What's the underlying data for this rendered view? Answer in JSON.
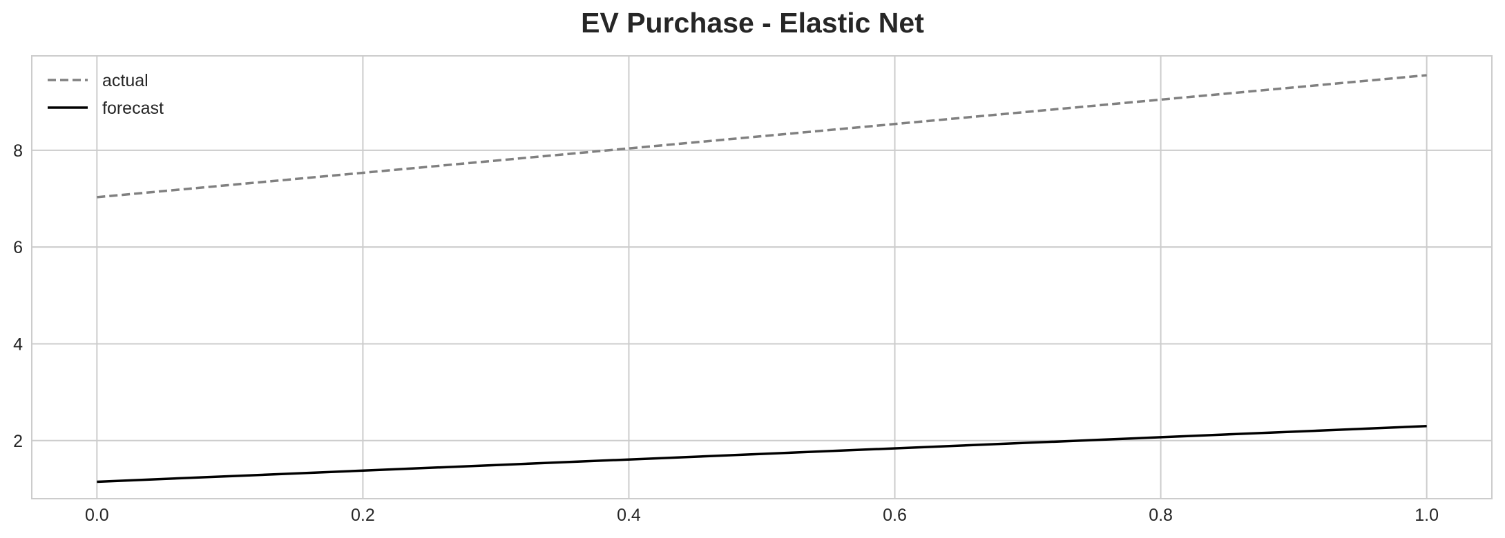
{
  "chart_data": {
    "type": "line",
    "title": "EV Purchase - Elastic Net",
    "xlabel": "",
    "ylabel": "",
    "xlim": [
      -0.049,
      1.049
    ],
    "ylim": [
      0.8,
      9.95
    ],
    "x_ticks": [
      0.0,
      0.2,
      0.4,
      0.6,
      0.8,
      1.0
    ],
    "x_tick_labels": [
      "0.0",
      "0.2",
      "0.4",
      "0.6",
      "0.8",
      "1.0"
    ],
    "y_ticks": [
      2,
      4,
      6,
      8
    ],
    "y_tick_labels": [
      "2",
      "4",
      "6",
      "8"
    ],
    "grid": true,
    "legend_position": "top-left",
    "series": [
      {
        "name": "actual",
        "x": [
          0.0,
          1.0
        ],
        "values": [
          7.03,
          9.55
        ],
        "color": "#808080",
        "style": "dashed"
      },
      {
        "name": "forecast",
        "x": [
          0.0,
          1.0
        ],
        "values": [
          1.15,
          2.3
        ],
        "color": "#000000",
        "style": "solid"
      }
    ]
  }
}
